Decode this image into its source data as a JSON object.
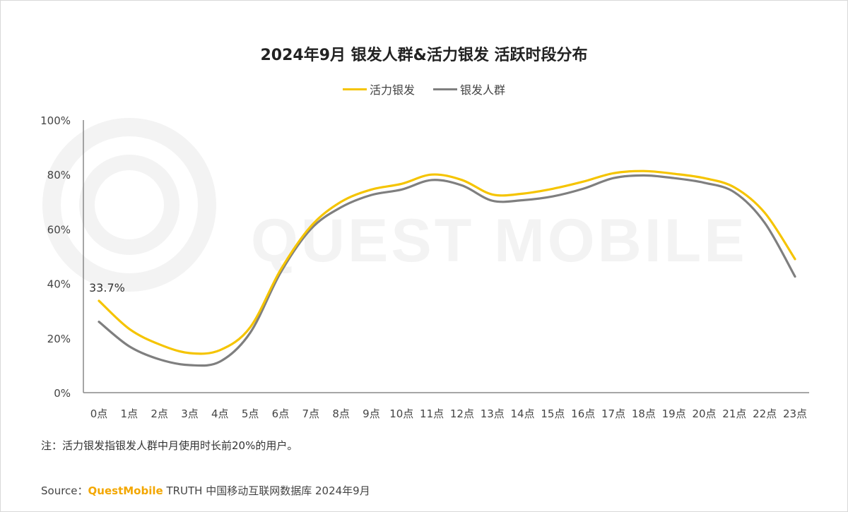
{
  "chart_data": {
    "type": "line",
    "title": "2024年9月 银发人群&活力银发 活跃时段分布",
    "categories": [
      "0点",
      "1点",
      "2点",
      "3点",
      "4点",
      "5点",
      "6点",
      "7点",
      "8点",
      "9点",
      "10点",
      "11点",
      "12点",
      "13点",
      "14点",
      "15点",
      "16点",
      "17点",
      "18点",
      "19点",
      "20点",
      "21点",
      "22点",
      "23点"
    ],
    "series": [
      {
        "name": "活力银发",
        "color": "#f5c400",
        "values": [
          33.7,
          23.4,
          17.7,
          14.5,
          15.6,
          24,
          45,
          61,
          70,
          74.5,
          76.6,
          80,
          78,
          72.7,
          73,
          74.8,
          77.4,
          80.5,
          81.3,
          80.3,
          78.7,
          75.3,
          66,
          49
        ]
      },
      {
        "name": "银发人群",
        "color": "#7f7f7f",
        "values": [
          26,
          17,
          12.2,
          10.1,
          11.4,
          22,
          44,
          60,
          68,
          72.5,
          74.5,
          78,
          76,
          70.4,
          70.6,
          72,
          74.8,
          78.7,
          79.7,
          78.7,
          77,
          73.5,
          62.3,
          42.6
        ]
      }
    ],
    "ylim": [
      0,
      100
    ],
    "yticks": [
      "0%",
      "20%",
      "40%",
      "60%",
      "80%",
      "100%"
    ],
    "data_labels": [
      {
        "series": "活力银发",
        "category": "0点",
        "text": "33.7%"
      }
    ],
    "grid": false,
    "legend": "top-center",
    "watermark": "QUEST MOBILE"
  },
  "note": "注：活力银发指银发人群中月使用时长前20%的用户。",
  "source": {
    "prefix": "Source：",
    "brand": "QuestMobile",
    "text": " TRUTH 中国移动互联网数据库 2024年9月"
  }
}
